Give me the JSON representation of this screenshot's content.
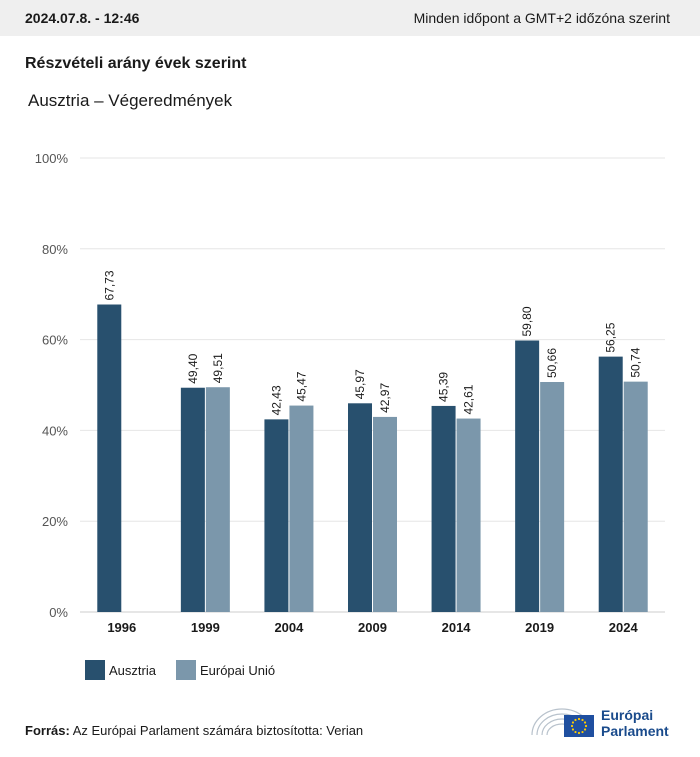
{
  "header": {
    "datetime": "2024.07.8. - 12:46",
    "timezone_note": "Minden időpont a GMT+2 időzóna szerint"
  },
  "title": "Részvételi arány évek szerint",
  "subtitle": "Ausztria – Végeredmények",
  "colors": {
    "austria": "#28506e",
    "eu": "#7b97ab",
    "grid": "#e6e6e6",
    "logo_blue": "#1a4b8c",
    "flag_blue": "#1f4fa0",
    "flag_stars": "#ffcc00"
  },
  "chart_data": {
    "type": "bar",
    "categories": [
      "1996",
      "1999",
      "2004",
      "2009",
      "2014",
      "2019",
      "2024"
    ],
    "series": [
      {
        "name": "Ausztria",
        "values": [
          67.73,
          49.4,
          42.43,
          45.97,
          45.39,
          59.8,
          56.25
        ]
      },
      {
        "name": "Európai Unió",
        "values": [
          null,
          49.51,
          45.47,
          42.97,
          42.61,
          50.66,
          50.74
        ]
      }
    ],
    "value_labels": [
      [
        "67,73",
        "49,40",
        "42,43",
        "45,97",
        "45,39",
        "59,80",
        "56,25"
      ],
      [
        null,
        "49,51",
        "45,47",
        "42,97",
        "42,61",
        "50,66",
        "50,74"
      ]
    ],
    "ylim": [
      0,
      100
    ],
    "yticks": [
      0,
      20,
      40,
      60,
      80,
      100
    ],
    "ytick_labels": [
      "0%",
      "20%",
      "40%",
      "60%",
      "80%",
      "100%"
    ],
    "xlabel": "",
    "ylabel": "",
    "grid": true,
    "legend_position": "bottom-left"
  },
  "legend": {
    "items": [
      {
        "label": "Ausztria"
      },
      {
        "label": "Európai Unió"
      }
    ]
  },
  "source": {
    "prefix": "Forrás:",
    "text": " Az Európai Parlament számára biztosította: Verian"
  },
  "logo": {
    "line1": "Európai",
    "line2": "Parlament",
    "icon": "european-parliament-hemicycle-and-eu-flag"
  }
}
